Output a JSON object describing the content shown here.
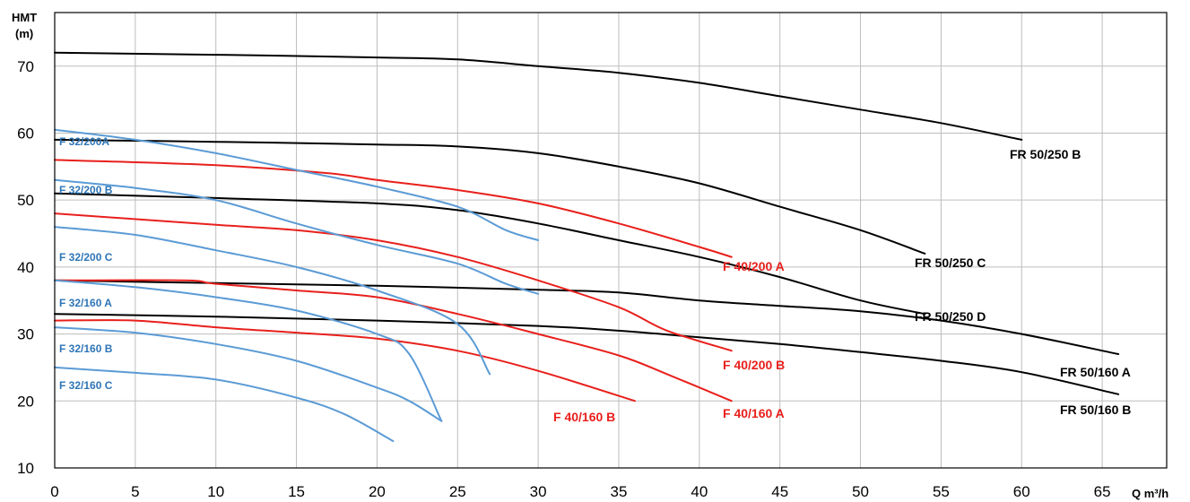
{
  "chart_data": {
    "type": "line",
    "xlabel": "Q m³/h",
    "ylabel_line1": "HMT",
    "ylabel_line2": "(m)",
    "xlim": [
      0,
      69
    ],
    "ylim": [
      10,
      78
    ],
    "xticks": [
      0,
      5,
      10,
      15,
      20,
      25,
      30,
      35,
      40,
      45,
      50,
      55,
      60,
      65
    ],
    "yticks": [
      10,
      20,
      30,
      40,
      50,
      60,
      70
    ],
    "grid": true,
    "colors": {
      "black": "#000000",
      "red": "#e8201c",
      "blue": "#5b9bd5",
      "blue_label": "#2e75b6"
    },
    "series": [
      {
        "name": "FR 50/250 B",
        "color": "black",
        "x": [
          0,
          10,
          20,
          25,
          30,
          35,
          40,
          45,
          50,
          55,
          60
        ],
        "y": [
          72,
          71.7,
          71.3,
          71,
          70,
          69,
          67.5,
          65.5,
          63.5,
          61.5,
          59
        ]
      },
      {
        "name": "FR 50/250 C",
        "color": "black",
        "x": [
          0,
          10,
          20,
          25,
          30,
          35,
          40,
          45,
          50,
          54
        ],
        "y": [
          59,
          58.7,
          58.3,
          58,
          57,
          55,
          52.5,
          49,
          45.5,
          42
        ]
      },
      {
        "name": "FR 50/250 D",
        "color": "black",
        "x": [
          0,
          10,
          20,
          25,
          30,
          35,
          40,
          45,
          50,
          54
        ],
        "y": [
          51,
          50.3,
          49.5,
          48.5,
          46.5,
          44,
          41.5,
          38.5,
          35,
          33
        ]
      },
      {
        "name": "FR 50/160 A",
        "color": "black",
        "x": [
          0,
          10,
          20,
          30,
          35,
          40,
          45,
          50,
          55,
          60,
          66
        ],
        "y": [
          38,
          37.6,
          37.2,
          36.6,
          36.2,
          35,
          34.2,
          33.4,
          32,
          30,
          27
        ]
      },
      {
        "name": "FR 50/160 B",
        "color": "black",
        "x": [
          0,
          10,
          20,
          30,
          35,
          40,
          45,
          50,
          55,
          60,
          66
        ],
        "y": [
          33,
          32.6,
          32,
          31.2,
          30.5,
          29.5,
          28.5,
          27.3,
          26,
          24.3,
          21
        ]
      },
      {
        "name": "F 40/200 A",
        "color": "red",
        "x": [
          0,
          10,
          17,
          20,
          25,
          30,
          35,
          40,
          42
        ],
        "y": [
          56,
          55.2,
          54,
          53,
          51.5,
          49.5,
          46.5,
          43,
          41.5
        ]
      },
      {
        "name": "F 40/200 B",
        "color": "red",
        "x": [
          0,
          10,
          15,
          20,
          25,
          30,
          35,
          38,
          42
        ],
        "y": [
          48,
          46.3,
          45.5,
          44,
          41.5,
          38,
          34,
          30.5,
          27.5
        ]
      },
      {
        "name": "F 40/160 A",
        "color": "red",
        "x": [
          0,
          8,
          10,
          15,
          20,
          25,
          30,
          35,
          38,
          42
        ],
        "y": [
          38,
          38,
          37.5,
          36.5,
          35.5,
          33,
          30,
          26.8,
          24,
          20
        ]
      },
      {
        "name": "F 40/160 B",
        "color": "red",
        "x": [
          0,
          5,
          10,
          15,
          20,
          25,
          30,
          36
        ],
        "y": [
          32,
          32,
          31,
          30.2,
          29.3,
          27.5,
          24.5,
          20
        ]
      },
      {
        "name": "F 32/200A",
        "color": "blue",
        "x": [
          0,
          5,
          10,
          15,
          20,
          25,
          28,
          30
        ],
        "y": [
          60.5,
          59,
          57,
          54.5,
          52,
          49,
          45.5,
          44
        ]
      },
      {
        "name": "F 32/200 B",
        "color": "blue",
        "x": [
          0,
          5,
          10,
          15,
          20,
          25,
          28,
          30
        ],
        "y": [
          53,
          51.8,
          50,
          46.5,
          43.3,
          40.5,
          37.5,
          36
        ]
      },
      {
        "name": "F 32/200 C",
        "color": "blue",
        "x": [
          0,
          5,
          10,
          15,
          20,
          25,
          27
        ],
        "y": [
          46,
          44.8,
          42.5,
          40,
          36.5,
          31.5,
          24
        ]
      },
      {
        "name": "F 32/160 A",
        "color": "blue",
        "x": [
          0,
          5,
          10,
          15,
          20,
          22,
          24
        ],
        "y": [
          38,
          37,
          35.5,
          33.5,
          30,
          27,
          17
        ]
      },
      {
        "name": "F 32/160 B",
        "color": "blue",
        "x": [
          0,
          5,
          10,
          15,
          20,
          22,
          24
        ],
        "y": [
          31,
          30.2,
          28.5,
          26,
          22,
          20,
          17
        ]
      },
      {
        "name": "F 32/160 C",
        "color": "blue",
        "x": [
          0,
          5,
          10,
          15,
          18,
          21
        ],
        "y": [
          25,
          24.2,
          23.2,
          20.5,
          18,
          14
        ]
      }
    ]
  }
}
